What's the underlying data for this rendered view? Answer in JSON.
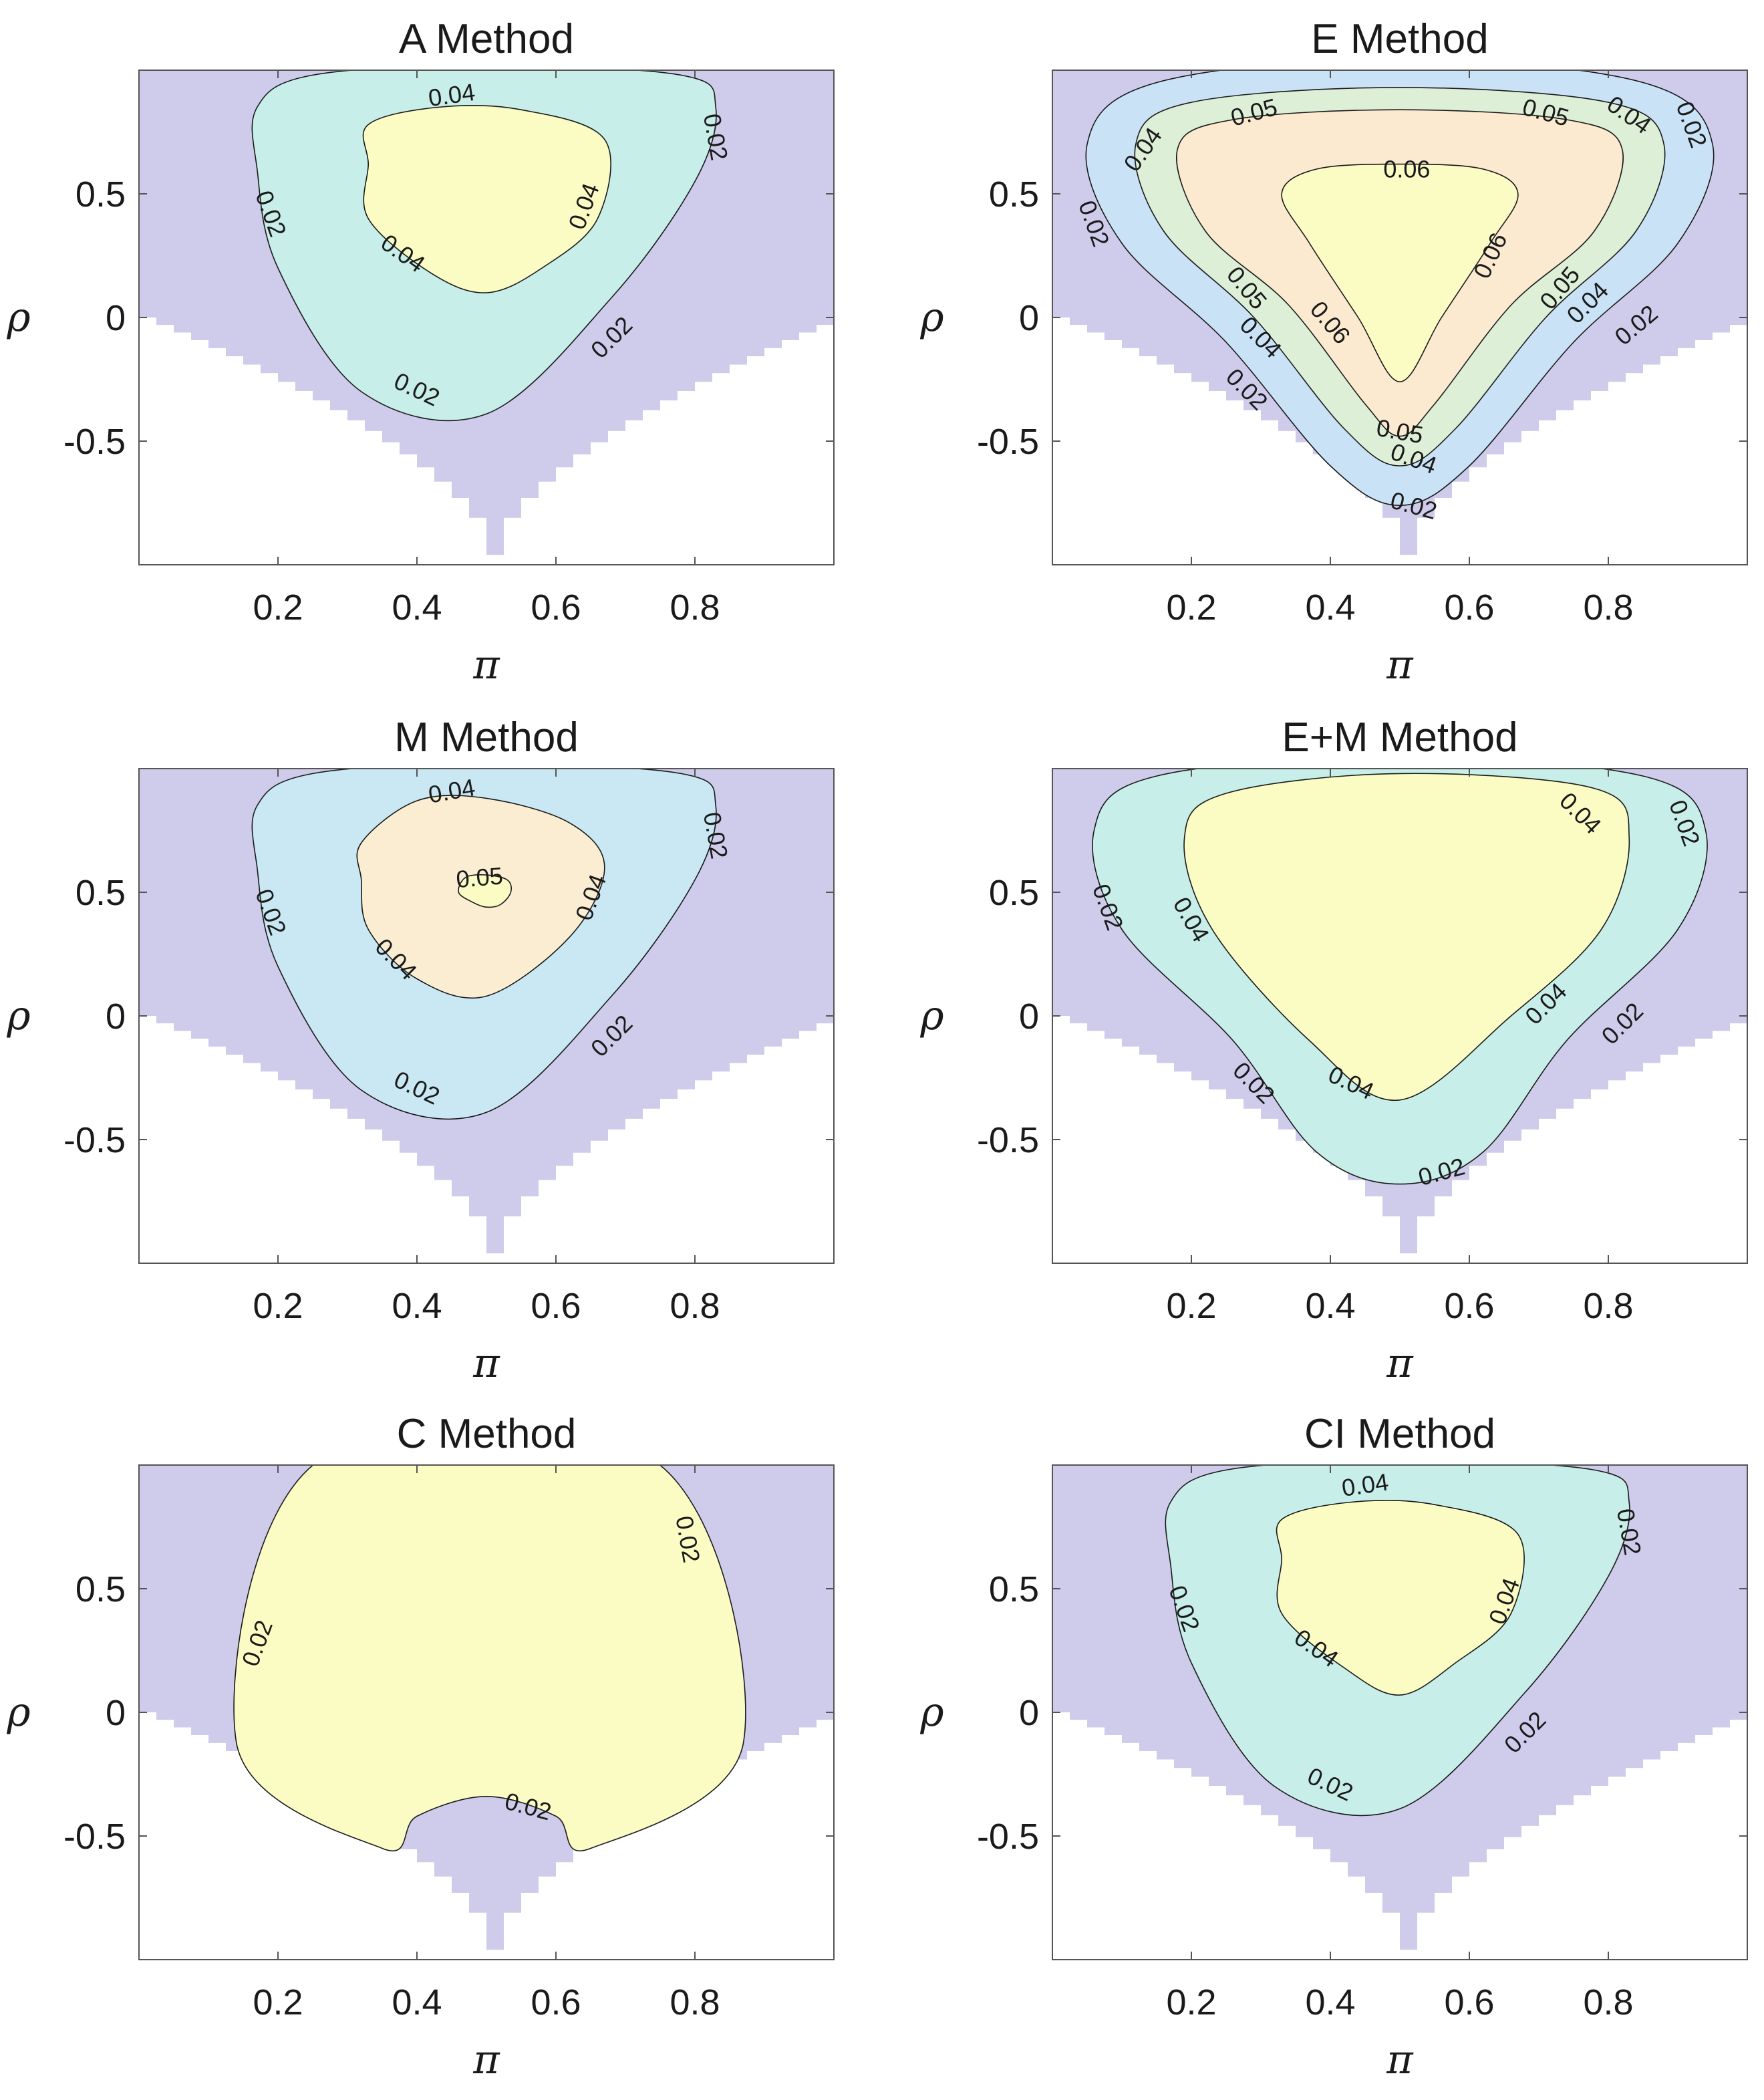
{
  "chart_data": [
    {
      "type": "contour",
      "title": "A Method",
      "xlabel": "π",
      "ylabel": "ρ",
      "xlim": [
        0,
        1
      ],
      "ylim": [
        -1,
        1
      ],
      "xticks": [
        "0.2",
        "0.4",
        "0.6",
        "0.8"
      ],
      "yticks": [
        "0.5",
        "0",
        "-0.5"
      ],
      "levels": [
        {
          "value": 0.02,
          "color": "#c7eee8",
          "contour": [
            [
              0.17,
              0.85
            ],
            [
              0.25,
              0.98
            ],
            [
              0.5,
              1.02
            ],
            [
              0.78,
              0.98
            ],
            [
              0.83,
              0.85
            ],
            [
              0.8,
              0.55
            ],
            [
              0.68,
              0.08
            ],
            [
              0.5,
              -0.39
            ],
            [
              0.32,
              -0.3
            ],
            [
              0.2,
              0.2
            ],
            [
              0.17,
              0.6
            ]
          ]
        },
        {
          "value": 0.04,
          "color": "#fbfbc4",
          "contour": [
            [
              0.33,
              0.78
            ],
            [
              0.43,
              0.85
            ],
            [
              0.55,
              0.84
            ],
            [
              0.67,
              0.72
            ],
            [
              0.66,
              0.4
            ],
            [
              0.58,
              0.2
            ],
            [
              0.5,
              0.1
            ],
            [
              0.42,
              0.18
            ],
            [
              0.33,
              0.4
            ],
            [
              0.33,
              0.62
            ]
          ]
        }
      ],
      "labels": [
        {
          "text": "0.04",
          "x": 0.45,
          "y": 0.9,
          "angle": -8
        },
        {
          "text": "0.02",
          "x": 0.83,
          "y": 0.73,
          "angle": 80
        },
        {
          "text": "0.02",
          "x": 0.19,
          "y": 0.42,
          "angle": 70
        },
        {
          "text": "0.04",
          "x": 0.64,
          "y": 0.45,
          "angle": -70
        },
        {
          "text": "0.04",
          "x": 0.38,
          "y": 0.26,
          "angle": 35
        },
        {
          "text": "0.02",
          "x": 0.68,
          "y": -0.08,
          "angle": -45
        },
        {
          "text": "0.02",
          "x": 0.4,
          "y": -0.29,
          "angle": 25
        }
      ]
    },
    {
      "type": "contour",
      "title": "E Method",
      "xlabel": "π",
      "ylabel": "ρ",
      "xlim": [
        0,
        1
      ],
      "ylim": [
        -1,
        1
      ],
      "xticks": [
        "0.2",
        "0.4",
        "0.6",
        "0.8"
      ],
      "yticks": [
        "0.5",
        "0",
        "-0.5"
      ],
      "levels": [
        {
          "value": 0.02,
          "color": "#c9e2f6",
          "contour": [
            [
              0.05,
              0.7
            ],
            [
              0.15,
              0.95
            ],
            [
              0.5,
              1.05
            ],
            [
              0.85,
              0.95
            ],
            [
              0.95,
              0.7
            ],
            [
              0.9,
              0.3
            ],
            [
              0.75,
              -0.1
            ],
            [
              0.6,
              -0.6
            ],
            [
              0.5,
              -0.76
            ],
            [
              0.4,
              -0.6
            ],
            [
              0.25,
              -0.1
            ],
            [
              0.1,
              0.3
            ]
          ]
        },
        {
          "value": 0.04,
          "color": "#ddefd7",
          "contour": [
            [
              0.12,
              0.7
            ],
            [
              0.2,
              0.87
            ],
            [
              0.5,
              0.93
            ],
            [
              0.8,
              0.87
            ],
            [
              0.88,
              0.7
            ],
            [
              0.84,
              0.35
            ],
            [
              0.71,
              0.0
            ],
            [
              0.58,
              -0.45
            ],
            [
              0.5,
              -0.6
            ],
            [
              0.42,
              -0.45
            ],
            [
              0.29,
              0.0
            ],
            [
              0.16,
              0.35
            ]
          ]
        },
        {
          "value": 0.05,
          "color": "#fbead0",
          "contour": [
            [
              0.18,
              0.68
            ],
            [
              0.26,
              0.8
            ],
            [
              0.5,
              0.84
            ],
            [
              0.74,
              0.8
            ],
            [
              0.82,
              0.68
            ],
            [
              0.78,
              0.35
            ],
            [
              0.66,
              0.05
            ],
            [
              0.55,
              -0.35
            ],
            [
              0.5,
              -0.48
            ],
            [
              0.45,
              -0.35
            ],
            [
              0.34,
              0.05
            ],
            [
              0.22,
              0.35
            ]
          ]
        },
        {
          "value": 0.06,
          "color": "#fbfbc4",
          "contour": [
            [
              0.33,
              0.5
            ],
            [
              0.38,
              0.6
            ],
            [
              0.5,
              0.62
            ],
            [
              0.62,
              0.6
            ],
            [
              0.67,
              0.5
            ],
            [
              0.63,
              0.3
            ],
            [
              0.56,
              0.0
            ],
            [
              0.5,
              -0.26
            ],
            [
              0.44,
              0.0
            ],
            [
              0.37,
              0.3
            ]
          ]
        }
      ],
      "labels": [
        {
          "text": "0.05",
          "x": 0.29,
          "y": 0.83,
          "angle": -15
        },
        {
          "text": "0.05",
          "x": 0.71,
          "y": 0.83,
          "angle": 15
        },
        {
          "text": "0.04",
          "x": 0.13,
          "y": 0.68,
          "angle": -55
        },
        {
          "text": "0.04",
          "x": 0.83,
          "y": 0.82,
          "angle": 35
        },
        {
          "text": "0.02",
          "x": 0.92,
          "y": 0.78,
          "angle": 70
        },
        {
          "text": "0.06",
          "x": 0.51,
          "y": 0.6,
          "angle": 0
        },
        {
          "text": "0.02",
          "x": 0.06,
          "y": 0.38,
          "angle": 70
        },
        {
          "text": "0.06",
          "x": 0.63,
          "y": 0.25,
          "angle": -65
        },
        {
          "text": "0.05",
          "x": 0.28,
          "y": 0.12,
          "angle": 50
        },
        {
          "text": "0.05",
          "x": 0.73,
          "y": 0.12,
          "angle": -50
        },
        {
          "text": "0.06",
          "x": 0.4,
          "y": -0.02,
          "angle": 50
        },
        {
          "text": "0.04",
          "x": 0.3,
          "y": -0.08,
          "angle": 45
        },
        {
          "text": "0.04",
          "x": 0.77,
          "y": 0.06,
          "angle": -45
        },
        {
          "text": "0.02",
          "x": 0.84,
          "y": -0.03,
          "angle": -40
        },
        {
          "text": "0.02",
          "x": 0.28,
          "y": -0.29,
          "angle": 45
        },
        {
          "text": "0.05",
          "x": 0.5,
          "y": -0.46,
          "angle": 10
        },
        {
          "text": "0.04",
          "x": 0.52,
          "y": -0.57,
          "angle": 20
        },
        {
          "text": "0.02",
          "x": 0.52,
          "y": -0.76,
          "angle": 15
        }
      ]
    },
    {
      "type": "contour",
      "title": "M Method",
      "xlabel": "π",
      "ylabel": "ρ",
      "xlim": [
        0,
        1
      ],
      "ylim": [
        -1,
        1
      ],
      "xticks": [
        "0.2",
        "0.4",
        "0.6",
        "0.8"
      ],
      "yticks": [
        "0.5",
        "0",
        "-0.5"
      ],
      "levels": [
        {
          "value": 0.02,
          "color": "#c9e8f3",
          "contour": [
            [
              0.17,
              0.85
            ],
            [
              0.25,
              0.98
            ],
            [
              0.5,
              1.02
            ],
            [
              0.78,
              0.98
            ],
            [
              0.83,
              0.85
            ],
            [
              0.8,
              0.55
            ],
            [
              0.68,
              0.08
            ],
            [
              0.5,
              -0.39
            ],
            [
              0.32,
              -0.3
            ],
            [
              0.2,
              0.2
            ],
            [
              0.17,
              0.6
            ]
          ]
        },
        {
          "value": 0.04,
          "color": "#fbedd1",
          "contour": [
            [
              0.32,
              0.7
            ],
            [
              0.4,
              0.87
            ],
            [
              0.5,
              0.88
            ],
            [
              0.62,
              0.78
            ],
            [
              0.67,
              0.6
            ],
            [
              0.62,
              0.32
            ],
            [
              0.5,
              0.08
            ],
            [
              0.4,
              0.15
            ],
            [
              0.33,
              0.35
            ],
            [
              0.32,
              0.55
            ]
          ]
        },
        {
          "value": 0.05,
          "color": "#fbfbc4",
          "contour": [
            [
              0.46,
              0.5
            ],
            [
              0.47,
              0.56
            ],
            [
              0.5,
              0.57
            ],
            [
              0.53,
              0.55
            ],
            [
              0.535,
              0.5
            ],
            [
              0.52,
              0.45
            ],
            [
              0.5,
              0.44
            ],
            [
              0.48,
              0.46
            ]
          ]
        }
      ],
      "labels": [
        {
          "text": "0.04",
          "x": 0.45,
          "y": 0.91,
          "angle": -10
        },
        {
          "text": "0.02",
          "x": 0.83,
          "y": 0.73,
          "angle": 80
        },
        {
          "text": "0.05",
          "x": 0.49,
          "y": 0.56,
          "angle": -5
        },
        {
          "text": "0.02",
          "x": 0.19,
          "y": 0.42,
          "angle": 70
        },
        {
          "text": "0.04",
          "x": 0.65,
          "y": 0.48,
          "angle": -70
        },
        {
          "text": "0.04",
          "x": 0.37,
          "y": 0.23,
          "angle": 45
        },
        {
          "text": "0.02",
          "x": 0.68,
          "y": -0.08,
          "angle": -45
        },
        {
          "text": "0.02",
          "x": 0.4,
          "y": -0.29,
          "angle": 25
        }
      ]
    },
    {
      "type": "contour",
      "title": "E+M Method",
      "xlabel": "π",
      "ylabel": "ρ",
      "xlim": [
        0,
        1
      ],
      "ylim": [
        -1,
        1
      ],
      "xticks": [
        "0.2",
        "0.4",
        "0.6",
        "0.8"
      ],
      "yticks": [
        "0.5",
        "0",
        "-0.5"
      ],
      "levels": [
        {
          "value": 0.02,
          "color": "#c7eee8",
          "contour": [
            [
              0.06,
              0.75
            ],
            [
              0.15,
              0.97
            ],
            [
              0.5,
              1.05
            ],
            [
              0.85,
              0.97
            ],
            [
              0.94,
              0.75
            ],
            [
              0.9,
              0.35
            ],
            [
              0.74,
              -0.1
            ],
            [
              0.62,
              -0.55
            ],
            [
              0.5,
              -0.68
            ],
            [
              0.38,
              -0.55
            ],
            [
              0.26,
              -0.1
            ],
            [
              0.1,
              0.35
            ]
          ]
        },
        {
          "value": 0.04,
          "color": "#fbfbc4",
          "contour": [
            [
              0.19,
              0.72
            ],
            [
              0.25,
              0.9
            ],
            [
              0.5,
              0.98
            ],
            [
              0.78,
              0.92
            ],
            [
              0.83,
              0.72
            ],
            [
              0.79,
              0.35
            ],
            [
              0.66,
              0.0
            ],
            [
              0.5,
              -0.34
            ],
            [
              0.37,
              -0.1
            ],
            [
              0.23,
              0.35
            ]
          ]
        }
      ],
      "labels": [
        {
          "text": "0.04",
          "x": 0.76,
          "y": 0.82,
          "angle": 45
        },
        {
          "text": "0.02",
          "x": 0.91,
          "y": 0.78,
          "angle": 70
        },
        {
          "text": "0.02",
          "x": 0.08,
          "y": 0.44,
          "angle": 70
        },
        {
          "text": "0.04",
          "x": 0.2,
          "y": 0.39,
          "angle": 60
        },
        {
          "text": "0.04",
          "x": 0.71,
          "y": 0.05,
          "angle": -45
        },
        {
          "text": "0.02",
          "x": 0.82,
          "y": -0.03,
          "angle": -45
        },
        {
          "text": "0.02",
          "x": 0.29,
          "y": -0.27,
          "angle": 45
        },
        {
          "text": "0.04",
          "x": 0.43,
          "y": -0.27,
          "angle": 25
        },
        {
          "text": "0.02",
          "x": 0.56,
          "y": -0.63,
          "angle": -15
        }
      ]
    },
    {
      "type": "contour",
      "title": "C Method",
      "xlabel": "π",
      "ylabel": "ρ",
      "xlim": [
        0,
        1
      ],
      "ylim": [
        -1,
        1
      ],
      "xticks": [
        "0.2",
        "0.4",
        "0.6",
        "0.8"
      ],
      "yticks": [
        "0.5",
        "0",
        "-0.5"
      ],
      "levels": [
        {
          "value": 0.02,
          "color": "#fbfbc4",
          "contour": [
            [
              0.14,
              -0.12
            ],
            [
              0.26,
              1.02
            ],
            [
              0.74,
              1.02
            ],
            [
              0.87,
              -0.12
            ],
            [
              0.65,
              -0.55
            ],
            [
              0.6,
              -0.42
            ],
            [
              0.5,
              -0.34
            ],
            [
              0.4,
              -0.42
            ],
            [
              0.35,
              -0.55
            ]
          ]
        }
      ],
      "labels": [
        {
          "text": "0.02",
          "x": 0.79,
          "y": 0.7,
          "angle": 80
        },
        {
          "text": "0.02",
          "x": 0.17,
          "y": 0.28,
          "angle": -70
        },
        {
          "text": "0.02",
          "x": 0.56,
          "y": -0.38,
          "angle": 15
        }
      ]
    },
    {
      "type": "contour",
      "title": "CI Method",
      "xlabel": "π",
      "ylabel": "ρ",
      "xlim": [
        0,
        1
      ],
      "ylim": [
        -1,
        1
      ],
      "xticks": [
        "0.2",
        "0.4",
        "0.6",
        "0.8"
      ],
      "yticks": [
        "0.5",
        "0",
        "-0.5"
      ],
      "levels": [
        {
          "value": 0.02,
          "color": "#c7eee8",
          "contour": [
            [
              0.17,
              0.85
            ],
            [
              0.25,
              0.98
            ],
            [
              0.5,
              1.02
            ],
            [
              0.78,
              0.98
            ],
            [
              0.83,
              0.85
            ],
            [
              0.8,
              0.55
            ],
            [
              0.68,
              0.08
            ],
            [
              0.5,
              -0.39
            ],
            [
              0.32,
              -0.3
            ],
            [
              0.2,
              0.2
            ],
            [
              0.17,
              0.6
            ]
          ]
        },
        {
          "value": 0.04,
          "color": "#fbfbc4",
          "contour": [
            [
              0.33,
              0.78
            ],
            [
              0.43,
              0.85
            ],
            [
              0.55,
              0.84
            ],
            [
              0.67,
              0.72
            ],
            [
              0.66,
              0.4
            ],
            [
              0.58,
              0.2
            ],
            [
              0.5,
              0.07
            ],
            [
              0.42,
              0.18
            ],
            [
              0.33,
              0.4
            ],
            [
              0.33,
              0.62
            ]
          ]
        }
      ],
      "labels": [
        {
          "text": "0.04",
          "x": 0.45,
          "y": 0.92,
          "angle": -8
        },
        {
          "text": "0.02",
          "x": 0.83,
          "y": 0.73,
          "angle": 80
        },
        {
          "text": "0.02",
          "x": 0.19,
          "y": 0.42,
          "angle": 70
        },
        {
          "text": "0.04",
          "x": 0.65,
          "y": 0.45,
          "angle": -70
        },
        {
          "text": "0.04",
          "x": 0.38,
          "y": 0.26,
          "angle": 35
        },
        {
          "text": "0.02",
          "x": 0.68,
          "y": -0.08,
          "angle": -45
        },
        {
          "text": "0.02",
          "x": 0.4,
          "y": -0.29,
          "angle": 25
        }
      ]
    }
  ],
  "colors": {
    "base": "#cfcbeb",
    "line": "#1a1a1a",
    "axis": "#555555"
  }
}
